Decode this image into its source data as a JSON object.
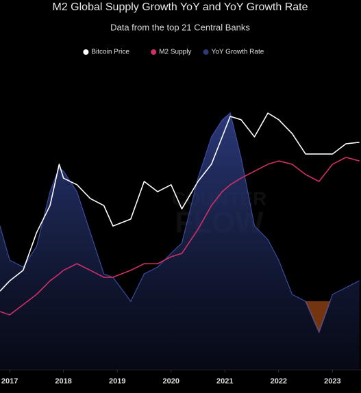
{
  "chart_data": {
    "type": "line",
    "title": "M2 Global Supply Growth YoY and YoY Growth Rate",
    "subtitle": "Data from the top 21 Central Banks",
    "watermark": [
      "COUNTER",
      "FLOW"
    ],
    "legend": "top",
    "x": [
      2016.82,
      2017,
      2017.25,
      2017.5,
      2017.75,
      2017.92,
      2018,
      2018.25,
      2018.5,
      2018.75,
      2018.92,
      2019.25,
      2019.5,
      2019.75,
      2020,
      2020.2,
      2020.5,
      2020.75,
      2020.95,
      2021.1,
      2021.3,
      2021.55,
      2021.8,
      2022,
      2022.25,
      2022.5,
      2022.75,
      2023,
      2023.25,
      2023.5
    ],
    "xlim": [
      2016.82,
      2023.53
    ],
    "xticks": [
      2017,
      2018,
      2019,
      2020,
      2021,
      2022,
      2023
    ],
    "ylim": [
      0,
      100
    ],
    "y2lim": [
      -5,
      17
    ],
    "series": [
      {
        "name": "YoY Growth Rate",
        "type": "area",
        "axis": "y2",
        "color": "#2b3a78",
        "negative_color": "#d2601c",
        "values": [
          5.5,
          3,
          2.5,
          4,
          8,
          9.75,
          9.5,
          8,
          5,
          2,
          1.75,
          0,
          2,
          2.5,
          3.5,
          4.25,
          9,
          12,
          13.25,
          13.75,
          10.5,
          5.5,
          4.5,
          3,
          0.5,
          0,
          -2.25,
          0.5,
          1,
          1.5
        ]
      },
      {
        "name": "M2 Supply",
        "type": "line",
        "color": "#d0306a",
        "values": [
          19.3,
          18.2,
          21.6,
          25,
          29.5,
          31.8,
          33,
          35.2,
          33,
          30.7,
          30.7,
          33,
          35.2,
          35.2,
          37.5,
          38.6,
          46.6,
          54.5,
          59.1,
          61.4,
          63.6,
          65.9,
          68.2,
          69.3,
          68.2,
          64.8,
          62.5,
          68.2,
          70.5,
          69.3
        ]
      },
      {
        "name": "Bitcoin Price",
        "type": "line",
        "color": "#ffffff",
        "values": [
          26.1,
          29.5,
          33,
          45.5,
          54.5,
          68.2,
          63.6,
          61.4,
          56.8,
          54.5,
          47.7,
          50,
          62.5,
          59.1,
          61.4,
          53.4,
          62.5,
          68.2,
          77.3,
          84.1,
          83,
          77.3,
          85.2,
          83,
          78.4,
          71.6,
          71.6,
          71.6,
          75,
          75.5
        ]
      }
    ]
  }
}
